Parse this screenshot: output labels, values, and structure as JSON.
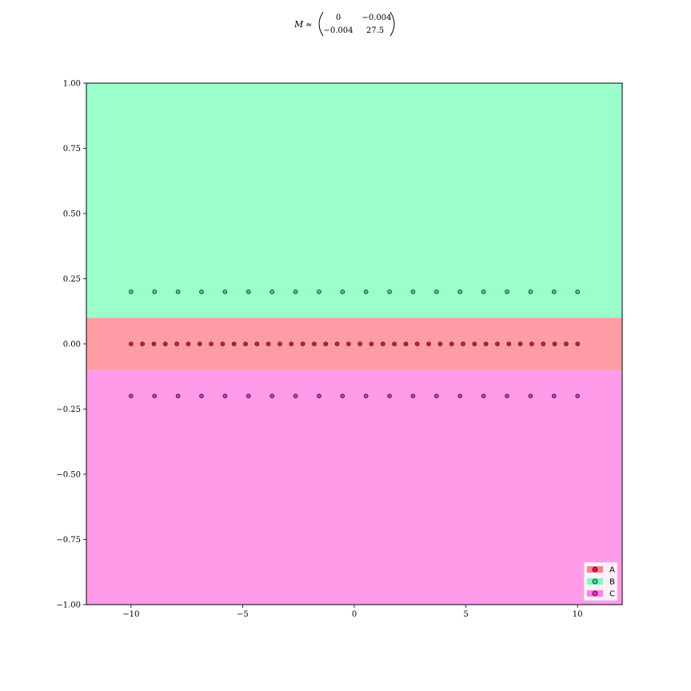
{
  "chart_data": {
    "type": "scatter",
    "title": {
      "symbol": "M",
      "relation": "≈",
      "matrix": [
        [
          "0",
          "−0.004"
        ],
        [
          "−0.004",
          "27.5"
        ]
      ]
    },
    "xlabel": "",
    "ylabel": "",
    "xlim": [
      -12,
      12
    ],
    "ylim": [
      -1,
      1
    ],
    "xticks": [
      -10,
      -5,
      0,
      5,
      10
    ],
    "xtick_labels": [
      "−10",
      "−5",
      "0",
      "5",
      "10"
    ],
    "yticks": [
      1.0,
      0.75,
      0.5,
      0.25,
      0.0,
      -0.25,
      -0.5,
      -0.75,
      -1.0
    ],
    "ytick_labels": [
      "1.00",
      "0.75",
      "0.50",
      "0.25",
      "0.00",
      "−0.25",
      "−0.50",
      "−0.75",
      "−1.00"
    ],
    "grid": false,
    "legend_position": "bottom-right",
    "regions": [
      {
        "class": "B",
        "ymin": 0.1,
        "ymax": 1.0,
        "color": "#9bffcc"
      },
      {
        "class": "A",
        "ymin": -0.1,
        "ymax": 0.1,
        "color": "#ff9ca4"
      },
      {
        "class": "C",
        "ymin": -1.0,
        "ymax": -0.1,
        "color": "#ff9be9"
      }
    ],
    "series": [
      {
        "name": "A",
        "y": 0.0,
        "x_start": -10,
        "x_end": 10,
        "count": 40,
        "color": "#f0103c",
        "legend_patch": "#ff7f8c"
      },
      {
        "name": "B",
        "y": 0.2,
        "x_start": -10,
        "x_end": 10,
        "count": 20,
        "color": "#2cdc8c",
        "legend_patch": "#7cffbd"
      },
      {
        "name": "C",
        "y": -0.2,
        "x_start": -10,
        "x_end": 10,
        "count": 20,
        "color": "#f022c8",
        "legend_patch": "#ff7fe6"
      }
    ]
  }
}
